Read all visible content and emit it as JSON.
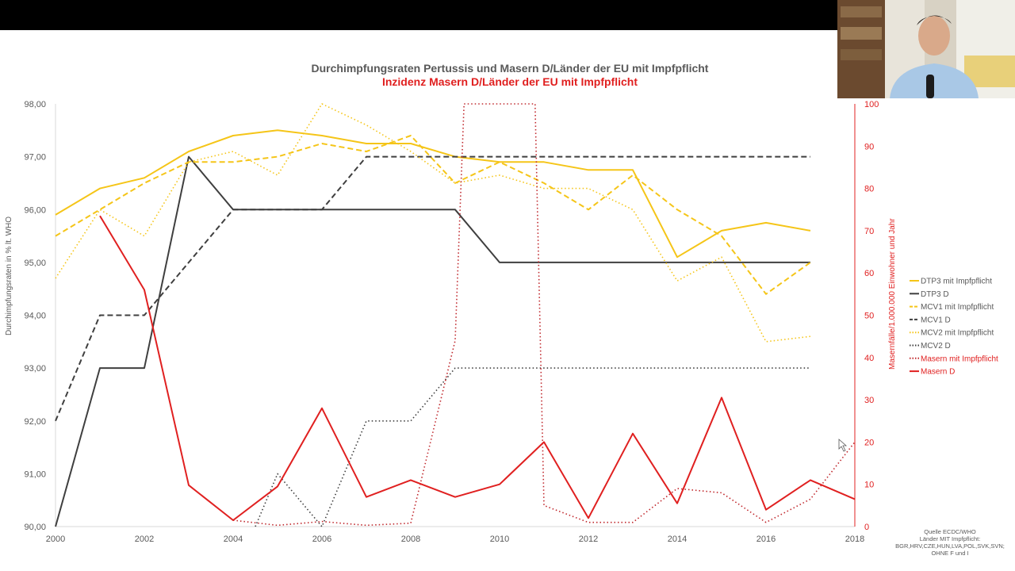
{
  "chart_data": {
    "type": "line",
    "title": "Durchimpfungsraten Pertussis und Masern D/Länder der EU mit Impfpflicht",
    "subtitle": "Inzidenz Masern D/Länder der EU mit Impfpflicht",
    "ylabel": "Durchimpfungsraten in % lt. WHO",
    "y2label": "Masernfälle/1.000.000 Einwohner und Jahr",
    "xlim": [
      2000,
      2018
    ],
    "ylim": [
      90,
      98
    ],
    "y2lim": [
      0,
      100
    ],
    "x_ticks": [
      "2000",
      "2002",
      "2004",
      "2006",
      "2008",
      "2010",
      "2012",
      "2014",
      "2016",
      "2018"
    ],
    "y_ticks": [
      "90,00",
      "91,00",
      "92,00",
      "93,00",
      "94,00",
      "95,00",
      "96,00",
      "97,00",
      "98,00"
    ],
    "y2_ticks": [
      "0",
      "10",
      "20",
      "30",
      "40",
      "50",
      "60",
      "70",
      "80",
      "90",
      "100"
    ],
    "legend_position": "right",
    "grid": false,
    "series": [
      {
        "name": "DTP3 mit Impfpflicht",
        "axis": "left",
        "color": "#f5c518",
        "dash": "solid",
        "x": [
          2000,
          2001,
          2002,
          2003,
          2004,
          2005,
          2006,
          2007,
          2008,
          2009,
          2010,
          2011,
          2012,
          2013,
          2014,
          2015,
          2016,
          2017
        ],
        "values": [
          95.9,
          96.4,
          96.6,
          97.1,
          97.4,
          97.5,
          97.4,
          97.25,
          97.25,
          97.0,
          96.9,
          96.9,
          96.75,
          96.75,
          95.1,
          95.6,
          95.75,
          95.6
        ]
      },
      {
        "name": "DTP3 D",
        "axis": "left",
        "color": "#3f3f3f",
        "dash": "solid",
        "x": [
          2000,
          2001,
          2002,
          2003,
          2004,
          2005,
          2006,
          2007,
          2008,
          2009,
          2010,
          2011,
          2012,
          2013,
          2014,
          2015,
          2016,
          2017
        ],
        "values": [
          90.0,
          93.0,
          93.0,
          97.0,
          96.0,
          96.0,
          96.0,
          96.0,
          96.0,
          96.0,
          95.0,
          95.0,
          95.0,
          95.0,
          95.0,
          95.0,
          95.0,
          95.0
        ]
      },
      {
        "name": "MCV1 mit Impfpflicht",
        "axis": "left",
        "color": "#f5c518",
        "dash": "dashed",
        "x": [
          2000,
          2001,
          2002,
          2003,
          2004,
          2005,
          2006,
          2007,
          2008,
          2009,
          2010,
          2011,
          2012,
          2013,
          2014,
          2015,
          2016,
          2017
        ],
        "values": [
          95.5,
          96.0,
          96.5,
          96.9,
          96.9,
          97.0,
          97.25,
          97.1,
          97.4,
          96.5,
          96.9,
          96.5,
          96.0,
          96.65,
          96.0,
          95.5,
          94.4,
          95.0
        ]
      },
      {
        "name": "MCV1 D",
        "axis": "left",
        "color": "#3f3f3f",
        "dash": "dashed",
        "x": [
          2000,
          2001,
          2002,
          2003,
          2004,
          2005,
          2006,
          2007,
          2008,
          2009,
          2010,
          2011,
          2012,
          2013,
          2014,
          2015,
          2016,
          2017
        ],
        "values": [
          92.0,
          94.0,
          94.0,
          95.0,
          96.0,
          96.0,
          96.0,
          97.0,
          97.0,
          97.0,
          97.0,
          97.0,
          97.0,
          97.0,
          97.0,
          97.0,
          97.0,
          97.0
        ]
      },
      {
        "name": "MCV2 mit Impfpflicht",
        "axis": "left",
        "color": "#f5c518",
        "dash": "dotted",
        "x": [
          2000,
          2001,
          2002,
          2003,
          2004,
          2005,
          2006,
          2007,
          2008,
          2009,
          2010,
          2011,
          2012,
          2013,
          2014,
          2015,
          2016,
          2017
        ],
        "values": [
          94.7,
          96.0,
          95.5,
          96.9,
          97.1,
          96.65,
          98.0,
          97.6,
          97.1,
          96.5,
          96.65,
          96.4,
          96.4,
          96.0,
          94.65,
          95.1,
          93.5,
          93.6
        ]
      },
      {
        "name": "MCV2 D",
        "axis": "left",
        "color": "#3f3f3f",
        "dash": "dotted",
        "x": [
          2004.5,
          2005,
          2006,
          2007,
          2008,
          2009,
          2010,
          2011,
          2012,
          2013,
          2014,
          2015,
          2016,
          2017
        ],
        "values": [
          90.0,
          91.0,
          90.0,
          92.0,
          92.0,
          93.0,
          93.0,
          93.0,
          93.0,
          93.0,
          93.0,
          93.0,
          93.0,
          93.0
        ]
      },
      {
        "name": "Masern mit Impfpflicht",
        "axis": "right",
        "color": "#c0282d",
        "dash": "dotted",
        "x": [
          2004,
          2005,
          2006,
          2007,
          2008,
          2009,
          2009.2,
          2010.8,
          2011,
          2012,
          2013,
          2014,
          2015,
          2016,
          2017,
          2018
        ],
        "values": [
          1.5,
          0.3,
          1.2,
          0.3,
          0.8,
          44,
          100,
          100,
          5,
          1,
          1,
          9,
          8,
          1,
          6.5,
          20
        ]
      },
      {
        "name": "Masern D",
        "axis": "right",
        "color": "#e02020",
        "dash": "solid",
        "x": [
          2001,
          2002,
          2003,
          2004,
          2005,
          2006,
          2007,
          2008,
          2009,
          2010,
          2011,
          2012,
          2013,
          2014,
          2015,
          2016,
          2017,
          2018
        ],
        "values": [
          73.5,
          56,
          9.8,
          1.5,
          9.5,
          28,
          7,
          11,
          7,
          10,
          20,
          2,
          22,
          5.5,
          30.5,
          4,
          11,
          6.5
        ]
      }
    ],
    "source_note": [
      "Quelle ECDC/WHO",
      "Länder MIT Impfpflicht:",
      "BGR,HRV,CZE,HUN,LVA,POL,SVK,SVN;",
      "OHNE F und I"
    ]
  }
}
